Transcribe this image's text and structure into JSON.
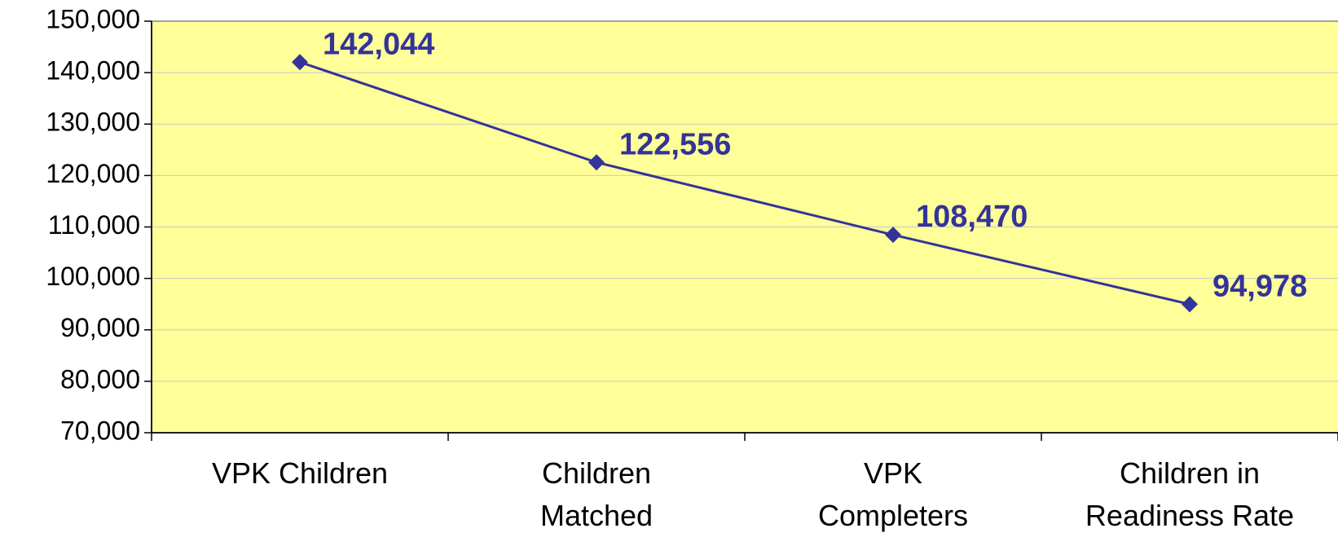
{
  "chart_data": {
    "type": "line",
    "categories": [
      "VPK Children",
      "Children Matched",
      "VPK Completers",
      "Children in Readiness Rate"
    ],
    "series": [
      {
        "color": "#333399",
        "values": [
          142044,
          122556,
          108470,
          94978
        ],
        "value_labels": [
          "142,044",
          "122,556",
          "108,470",
          "94,978"
        ]
      }
    ],
    "ylim": [
      70000,
      150000
    ],
    "yticks": [
      {
        "value": 70000,
        "label": "70,000"
      },
      {
        "value": 80000,
        "label": "80,000"
      },
      {
        "value": 90000,
        "label": "90,000"
      },
      {
        "value": 100000,
        "label": "100,000"
      },
      {
        "value": 110000,
        "label": "110,000"
      },
      {
        "value": 120000,
        "label": "120,000"
      },
      {
        "value": 130000,
        "label": "130,000"
      },
      {
        "value": 140000,
        "label": "140,000"
      },
      {
        "value": 150000,
        "label": "150,000"
      }
    ],
    "grid": true,
    "plot_background": "#ffff99"
  }
}
